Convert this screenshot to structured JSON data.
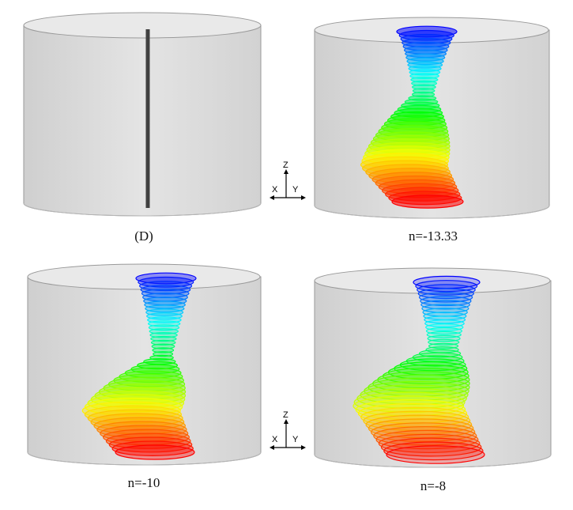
{
  "panels": [
    {
      "caption": "(D)",
      "kind": "rod"
    },
    {
      "caption": "n=-13.33",
      "kind": "vortex",
      "intensity": 0.0
    },
    {
      "caption": "n=-10",
      "kind": "vortex",
      "intensity": 0.5
    },
    {
      "caption": "n=-8",
      "kind": "vortex",
      "intensity": 1.0
    }
  ],
  "axis_labels": {
    "z": "Z",
    "x": "X",
    "y": "Y"
  },
  "colors": {
    "cylinder_fill": "#d9d9d9",
    "cylinder_edge": "#9a9a9a",
    "rod": "#404040",
    "gradient_top": "#0000ff",
    "gradient_bottom": "#ff0000"
  }
}
